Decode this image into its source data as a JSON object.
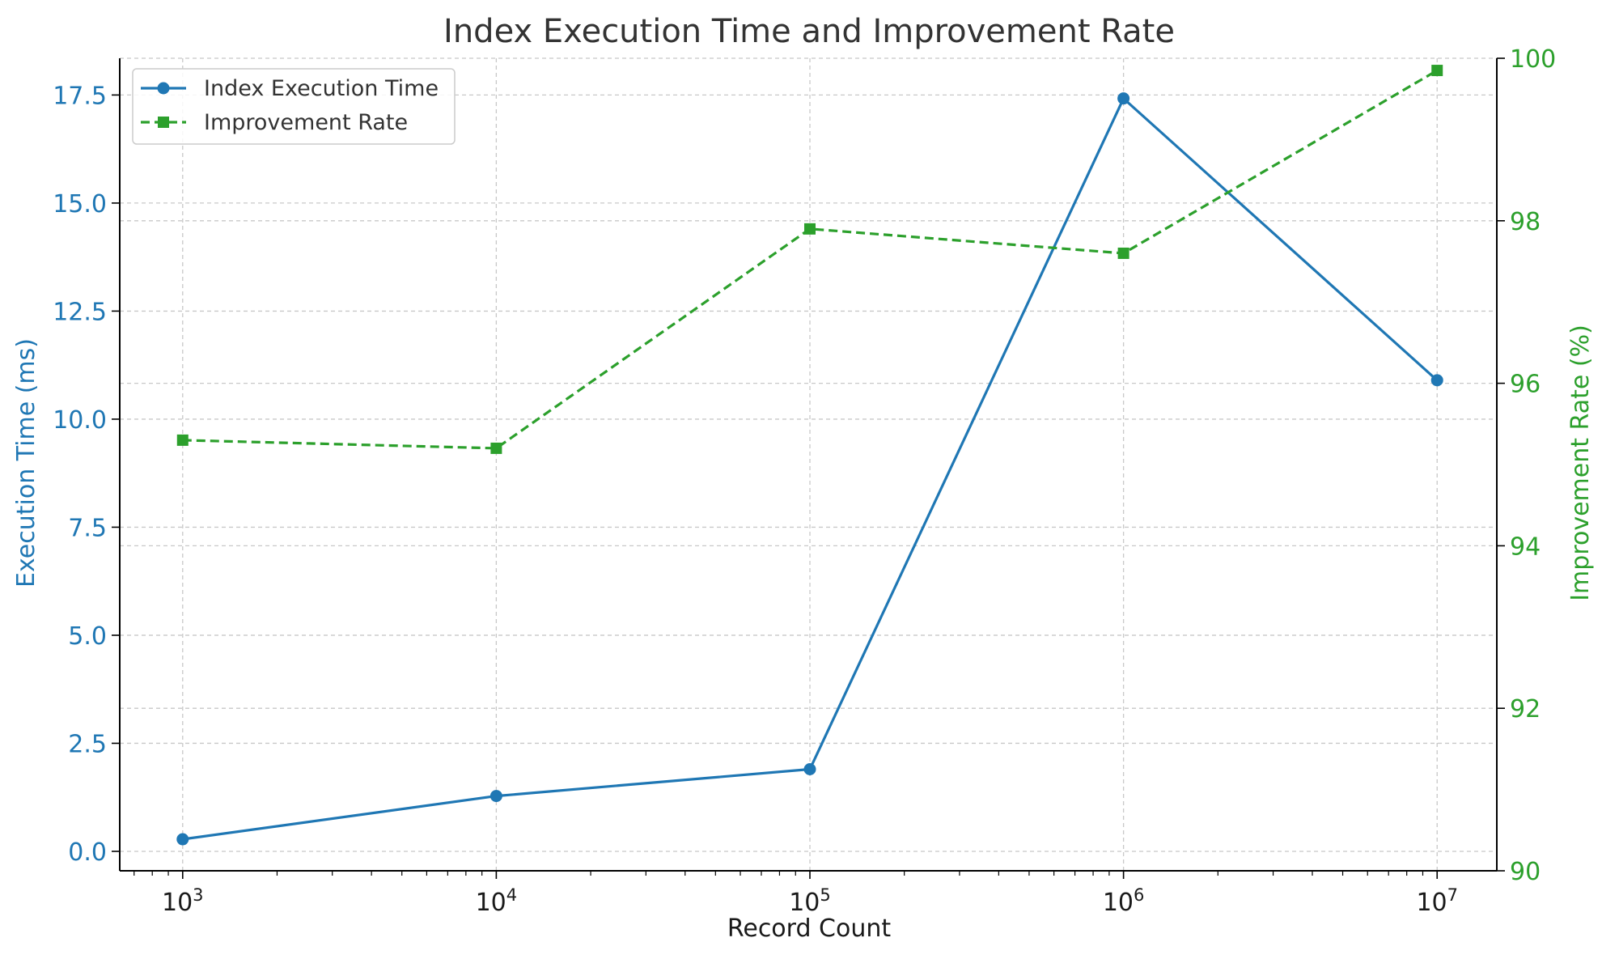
{
  "chart_data": {
    "type": "line",
    "title": "Index Execution Time and Improvement Rate",
    "xlabel": "Record Count",
    "ylabel_left": "Execution Time (ms)",
    "ylabel_right": "Improvement Rate (%)",
    "x_scale": "log",
    "x": [
      1000,
      10000,
      100000,
      1000000,
      10000000
    ],
    "x_tick_labels": [
      {
        "base": "10",
        "exp": "3"
      },
      {
        "base": "10",
        "exp": "4"
      },
      {
        "base": "10",
        "exp": "5"
      },
      {
        "base": "10",
        "exp": "6"
      },
      {
        "base": "10",
        "exp": "7"
      }
    ],
    "xlim": [
      630,
      15500000
    ],
    "ylim_left": [
      -0.45,
      18.35
    ],
    "ylim_right": [
      90,
      100
    ],
    "yticks_left": [
      "0.0",
      "2.5",
      "5.0",
      "7.5",
      "10.0",
      "12.5",
      "15.0",
      "17.5"
    ],
    "yticks_right": [
      "90",
      "92",
      "94",
      "96",
      "98",
      "100"
    ],
    "grid": true,
    "legend_position": "top-left",
    "series": [
      {
        "name": "Index Execution Time",
        "axis": "left",
        "color": "#1f77b4",
        "line_style": "solid",
        "marker": "circle",
        "values": [
          0.28,
          1.28,
          1.9,
          17.42,
          10.9
        ]
      },
      {
        "name": "Improvement Rate",
        "axis": "right",
        "color": "#2ca02c",
        "line_style": "dashed",
        "marker": "square",
        "values": [
          95.3,
          95.2,
          97.9,
          97.6,
          99.85
        ]
      }
    ]
  }
}
